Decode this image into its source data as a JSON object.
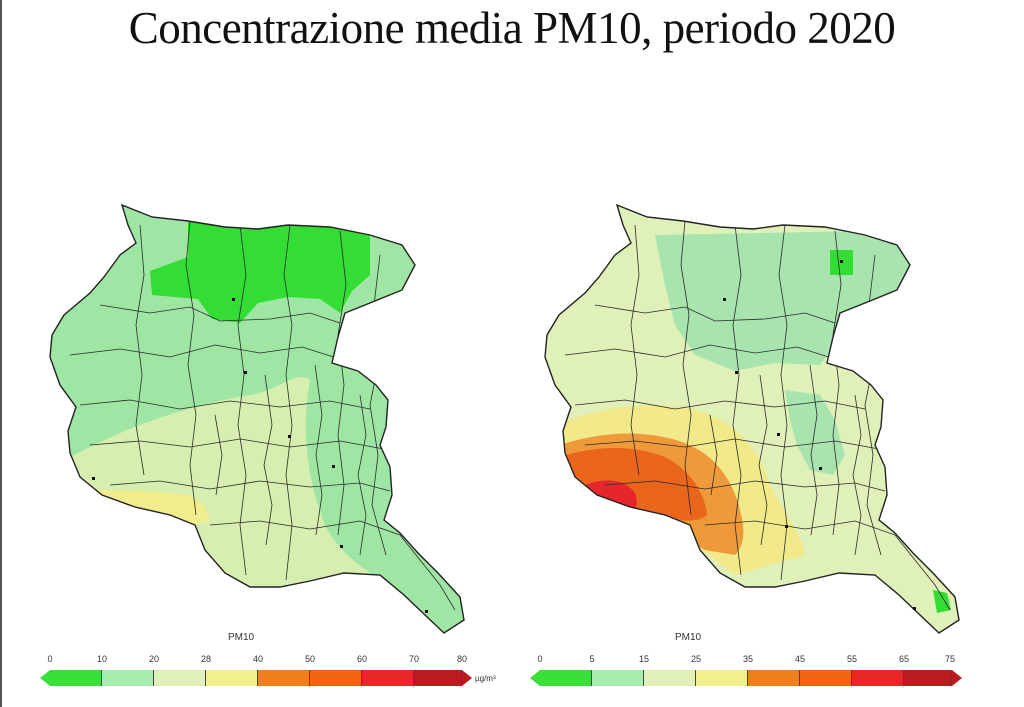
{
  "title": "Concentrazione media PM10, periodo 2020",
  "maps": [
    {
      "name": "left",
      "legend": {
        "title": "PM10",
        "ticks": [
          "0",
          "10",
          "20",
          "28",
          "40",
          "50",
          "60",
          "70",
          "80"
        ],
        "unit": "µg/m³",
        "colors": [
          "#39e039",
          "#a8ecae",
          "#dff0b8",
          "#f4ef8a",
          "#f07e1a",
          "#f06412",
          "#e82828",
          "#b81c1c"
        ]
      },
      "zones": [
        {
          "color": "#9fe6a4"
        },
        {
          "color": "#d6eeb0"
        },
        {
          "color": "#f1ec8c"
        },
        {
          "color": "#33dd33"
        }
      ]
    },
    {
      "name": "right",
      "legend": {
        "title": "PM10",
        "ticks": [
          "0",
          "5",
          "15",
          "25",
          "35",
          "45",
          "55",
          "65",
          "75"
        ],
        "unit": "",
        "colors": [
          "#39e039",
          "#a8ecae",
          "#dff0b8",
          "#f4ef8a",
          "#f07e1a",
          "#f06412",
          "#e82828",
          "#b81c1c"
        ]
      },
      "zones": [
        {
          "color": "#dff0b8"
        },
        {
          "color": "#a8e4ae"
        },
        {
          "color": "#f2e98a"
        },
        {
          "color": "#ef9a3a"
        },
        {
          "color": "#e9661c"
        },
        {
          "color": "#e5262a"
        },
        {
          "color": "#33dd33"
        }
      ]
    }
  ]
}
